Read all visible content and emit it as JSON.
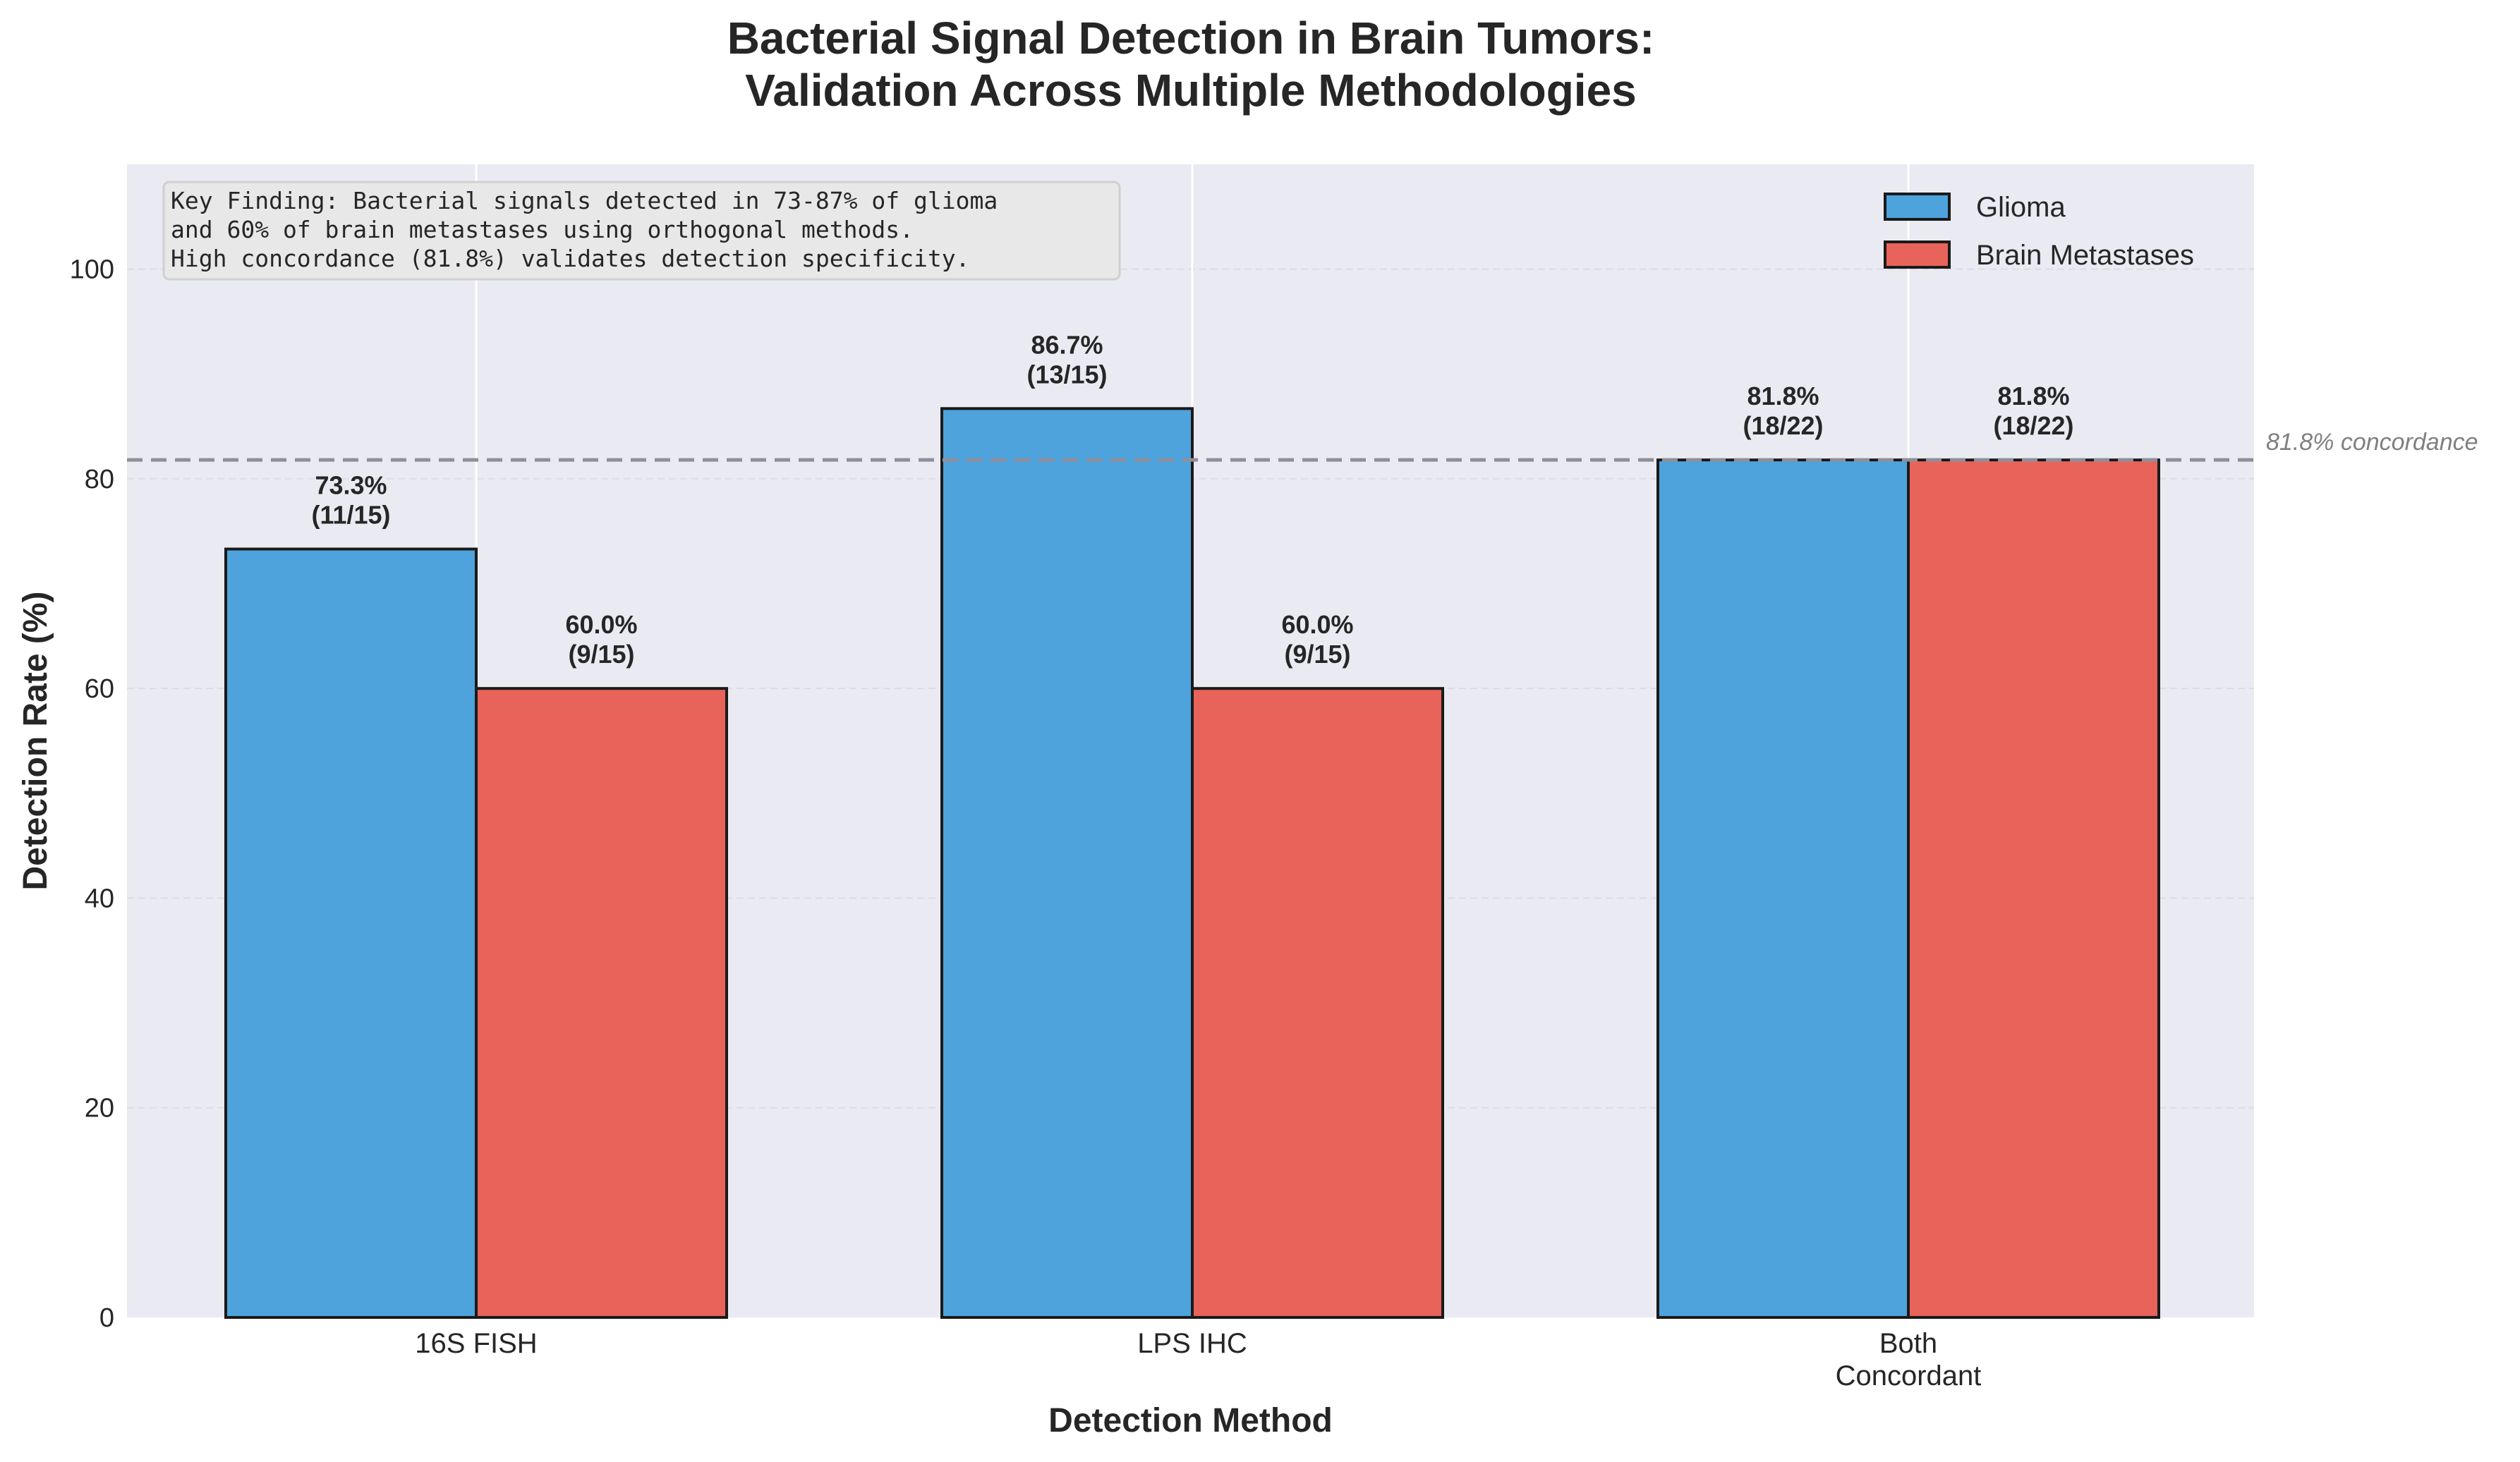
{
  "chart_data": {
    "type": "bar",
    "title_lines": [
      "Bacterial Signal Detection in Brain Tumors:",
      "Validation Across Multiple Methodologies"
    ],
    "xlabel": "Detection Method",
    "ylabel": "Detection Rate (%)",
    "categories": [
      [
        "16S FISH"
      ],
      [
        "LPS IHC"
      ],
      [
        "Both",
        "Concordant"
      ]
    ],
    "ylim": [
      0,
      110
    ],
    "yticks": [
      0,
      20,
      40,
      60,
      80,
      100
    ],
    "grid": true,
    "legend_position": "top-right",
    "series": [
      {
        "name": "Glioma",
        "color": "#4ea3dc",
        "values": [
          73.3,
          86.7,
          81.8
        ],
        "labels": [
          [
            "73.3%",
            "(11/15)"
          ],
          [
            "86.7%",
            "(13/15)"
          ],
          [
            "81.8%",
            "(18/22)"
          ]
        ]
      },
      {
        "name": "Brain Metastases",
        "color": "#e8635a",
        "values": [
          60.0,
          60.0,
          81.8
        ],
        "labels": [
          [
            "60.0%",
            "(9/15)"
          ],
          [
            "60.0%",
            "(9/15)"
          ],
          [
            "81.8%",
            "(18/22)"
          ]
        ]
      }
    ],
    "reference_line": {
      "value": 81.8,
      "label": "81.8% concordance",
      "color": "#8f8f9a"
    },
    "annotation": [
      "Key Finding: Bacterial signals detected in 73-87% of glioma",
      "and 60% of brain metastases using orthogonal methods.",
      "High concordance (81.8%) validates detection specificity."
    ]
  }
}
